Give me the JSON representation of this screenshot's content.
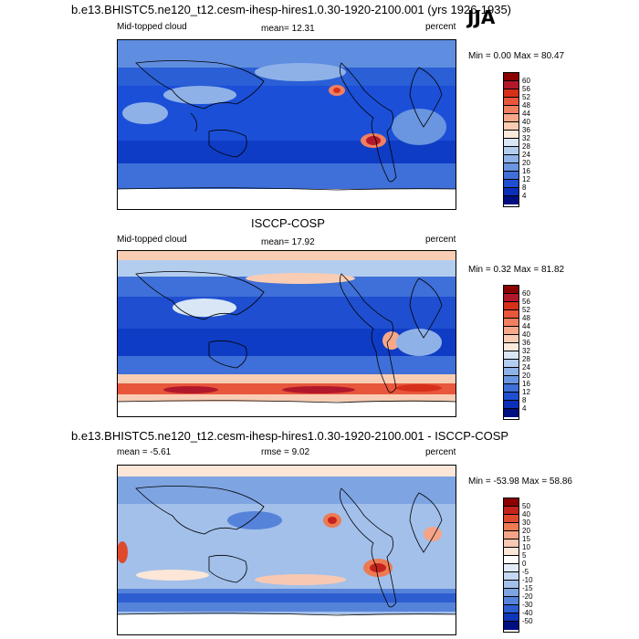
{
  "header": {
    "run_title": "b.e13.BHISTC5.ne120_t12.cesm-ihesp-hires1.0.30-1920-2100.001 (yrs 1926-1935)",
    "season": "JJA"
  },
  "panel1": {
    "left": "Mid-topped cloud",
    "center": "mean=  12.31",
    "right": "percent",
    "minmax": "Min =   0.00 Max =  80.47",
    "colorbar_labels": [
      "60",
      "56",
      "52",
      "48",
      "44",
      "40",
      "36",
      "32",
      "28",
      "24",
      "20",
      "16",
      "12",
      "8",
      "4"
    ]
  },
  "panel2": {
    "title": "ISCCP-COSP",
    "left": "Mid-topped cloud",
    "center": "mean=  17.92",
    "right": "percent",
    "minmax": "Min =   0.32 Max =  81.82",
    "colorbar_labels": [
      "60",
      "56",
      "52",
      "48",
      "44",
      "40",
      "36",
      "32",
      "28",
      "24",
      "20",
      "16",
      "12",
      "8",
      "4"
    ]
  },
  "panel3": {
    "title": "b.e13.BHISTC5.ne120_t12.cesm-ihesp-hires1.0.30-1920-2100.001 - ISCCP-COSP",
    "left": "mean = -5.61",
    "center": "rmse =   9.02",
    "right": "percent",
    "minmax": "Min = -53.98 Max =  58.86",
    "colorbar_labels": [
      "50",
      "40",
      "30",
      "20",
      "15",
      "10",
      "5",
      "0",
      "-5",
      "-10",
      "-15",
      "-20",
      "-30",
      "-40",
      "-50"
    ]
  },
  "colors": {
    "abs_scale": [
      "#8b0000",
      "#b2182b",
      "#d6301a",
      "#e8563c",
      "#f08060",
      "#f5a88a",
      "#f8cdb4",
      "#fbe9dc",
      "#d8e6f6",
      "#b3cdef",
      "#8eb2e8",
      "#6a95e0",
      "#3f6fd8",
      "#1f4fd0",
      "#0a2fb8",
      "#000f80"
    ],
    "diff_scale": [
      "#8b0000",
      "#c4231c",
      "#de4a2e",
      "#ee7a54",
      "#f5a488",
      "#f9c8b2",
      "#fbe6d8",
      "#ffffff",
      "#e2ecf8",
      "#c4d8f2",
      "#a2c0ea",
      "#7ea4e2",
      "#5683da",
      "#2d5ed0",
      "#0d36b8",
      "#000f80"
    ]
  }
}
